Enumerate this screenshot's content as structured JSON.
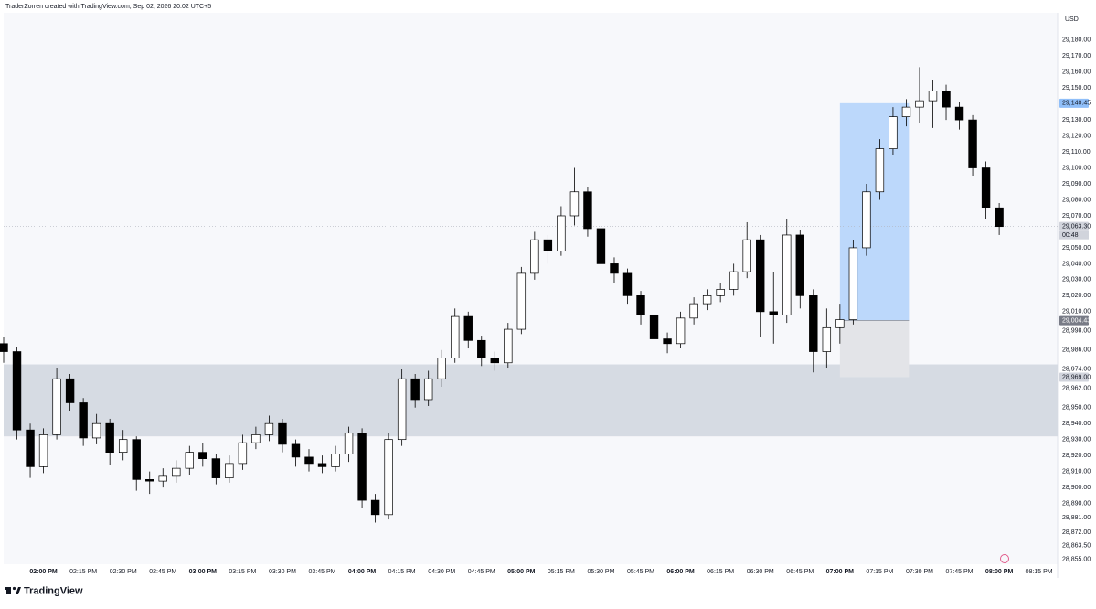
{
  "chart_data": {
    "type": "candlestick",
    "header": "TraderZorren created with TradingView.com, Sep 02, 2026 20:02 UTC+5",
    "currency": "USD",
    "brand": "TradingView",
    "up_color": "#ffffff",
    "down_color": "#000000",
    "x": [
      "01:45 PM",
      "01:50 PM",
      "01:55 PM",
      "02:00 PM",
      "02:05 PM",
      "02:10 PM",
      "02:15 PM",
      "02:20 PM",
      "02:25 PM",
      "02:30 PM",
      "02:35 PM",
      "02:40 PM",
      "02:45 PM",
      "02:50 PM",
      "02:55 PM",
      "03:00 PM",
      "03:05 PM",
      "03:10 PM",
      "03:15 PM",
      "03:20 PM",
      "03:25 PM",
      "03:30 PM",
      "03:35 PM",
      "03:40 PM",
      "03:45 PM",
      "03:50 PM",
      "03:55 PM",
      "04:00 PM",
      "04:05 PM",
      "04:10 PM",
      "04:15 PM",
      "04:20 PM",
      "04:25 PM",
      "04:30 PM",
      "04:35 PM",
      "04:40 PM",
      "04:45 PM",
      "04:50 PM",
      "04:55 PM",
      "05:00 PM",
      "05:05 PM",
      "05:10 PM",
      "05:15 PM",
      "05:20 PM",
      "05:25 PM",
      "05:30 PM",
      "05:35 PM",
      "05:40 PM",
      "05:45 PM",
      "05:50 PM",
      "05:55 PM",
      "06:00 PM",
      "06:05 PM",
      "06:10 PM",
      "06:15 PM",
      "06:20 PM",
      "06:25 PM",
      "06:30 PM",
      "06:35 PM",
      "06:40 PM",
      "06:45 PM",
      "06:50 PM",
      "06:55 PM",
      "07:00 PM",
      "07:05 PM",
      "07:10 PM",
      "07:15 PM",
      "07:20 PM",
      "07:25 PM",
      "07:30 PM",
      "07:35 PM",
      "07:40 PM",
      "07:45 PM",
      "07:50 PM",
      "07:55 PM",
      "08:00 PM"
    ],
    "open": [
      28990,
      28985,
      28936,
      28913,
      28933,
      28968,
      28953,
      28931,
      28940,
      28922,
      28930,
      28905,
      28904,
      28907,
      28912,
      28922,
      28918,
      28906,
      28915,
      28928,
      28933,
      28940,
      28927,
      28919,
      28915,
      28913,
      28921,
      28934,
      28892,
      28883,
      28930,
      28968,
      28955,
      28968,
      28981,
      29007,
      28992,
      28981,
      28978,
      28999,
      29034,
      29055,
      29048,
      29070,
      29085,
      29062,
      29040,
      29034,
      29020,
      29008,
      28993,
      28990,
      29006,
      29015,
      29020,
      29024,
      29035,
      29055,
      29010,
      29008,
      29058,
      29020,
      28985,
      29000,
      29005,
      29050,
      29085,
      29112,
      29132,
      29138,
      29142,
      29148,
      29138,
      29130,
      29100,
      29075
    ],
    "high": [
      28994,
      28988,
      28940,
      28937,
      28975,
      28971,
      28956,
      28946,
      28943,
      28936,
      28932,
      28910,
      28912,
      28917,
      28926,
      28928,
      28921,
      28920,
      28933,
      28938,
      28945,
      28943,
      28930,
      28924,
      28920,
      28926,
      28938,
      28937,
      28896,
      28934,
      28974,
      28971,
      28973,
      28986,
      29012,
      29010,
      28995,
      28985,
      29003,
      29038,
      29060,
      29058,
      29076,
      29100,
      29088,
      29065,
      29044,
      29037,
      29023,
      29011,
      28997,
      29010,
      29019,
      29024,
      29028,
      29040,
      29066,
      29058,
      29035,
      29068,
      29061,
      29024,
      29012,
      29015,
      29055,
      29090,
      29118,
      29138,
      29143,
      29163,
      29155,
      29152,
      29141,
      29133,
      29104,
      29078
    ],
    "low": [
      28978,
      28930,
      28906,
      28909,
      28930,
      28948,
      28926,
      28927,
      28914,
      28917,
      28898,
      28896,
      28900,
      28903,
      28908,
      28913,
      28902,
      28903,
      28911,
      28924,
      28929,
      28922,
      28913,
      28910,
      28909,
      28910,
      28916,
      28887,
      28878,
      28880,
      28926,
      28950,
      28951,
      28963,
      28978,
      28987,
      28976,
      28973,
      28975,
      28996,
      29030,
      29040,
      29045,
      29064,
      29057,
      29035,
      29028,
      29015,
      29002,
      28988,
      28984,
      28987,
      29002,
      29011,
      29016,
      29020,
      29031,
      28994,
      28990,
      29003,
      29012,
      28972,
      28975,
      28990,
      29002,
      29045,
      29080,
      29108,
      29126,
      29128,
      29125,
      29130,
      29124,
      29095,
      29068,
      29058
    ],
    "close": [
      28985,
      28936,
      28913,
      28933,
      28968,
      28953,
      28931,
      28940,
      28922,
      28930,
      28905,
      28904,
      28907,
      28912,
      28922,
      28918,
      28906,
      28915,
      28928,
      28933,
      28940,
      28927,
      28919,
      28915,
      28913,
      28921,
      28934,
      28892,
      28883,
      28930,
      28968,
      28955,
      28968,
      28981,
      29007,
      28992,
      28981,
      28978,
      28999,
      29034,
      29055,
      29048,
      29070,
      29085,
      29062,
      29040,
      29034,
      29020,
      29008,
      28993,
      28990,
      29006,
      29015,
      29020,
      29024,
      29035,
      29055,
      29010,
      29008,
      29058,
      29020,
      28985,
      29000,
      29005,
      29050,
      29085,
      29112,
      29132,
      29138,
      29142,
      29148,
      29138,
      29130,
      29100,
      29075,
      29063.3
    ],
    "xlim": [
      "01:45 PM",
      "08:22 PM"
    ],
    "xticks": [
      "02:00 PM",
      "02:15 PM",
      "02:30 PM",
      "02:45 PM",
      "03:00 PM",
      "03:15 PM",
      "03:30 PM",
      "03:45 PM",
      "04:00 PM",
      "04:15 PM",
      "04:30 PM",
      "04:45 PM",
      "05:00 PM",
      "05:15 PM",
      "05:30 PM",
      "05:45 PM",
      "06:00 PM",
      "06:15 PM",
      "06:30 PM",
      "06:45 PM",
      "07:00 PM",
      "07:15 PM",
      "07:30 PM",
      "07:45 PM",
      "08:00 PM",
      "08:15 PM"
    ],
    "ylim": [
      28852,
      29197
    ],
    "yticks": [
      {
        "value": 29180,
        "label": "29,180.00"
      },
      {
        "value": 29170,
        "label": "29,170.00"
      },
      {
        "value": 29160,
        "label": "29,160.00"
      },
      {
        "value": 29150,
        "label": "29,150.00"
      },
      {
        "value": 29130,
        "label": "29,130.00"
      },
      {
        "value": 29120,
        "label": "29,120.00"
      },
      {
        "value": 29110,
        "label": "29,110.00"
      },
      {
        "value": 29100,
        "label": "29,100.00"
      },
      {
        "value": 29090,
        "label": "29,090.00"
      },
      {
        "value": 29080,
        "label": "29,080.00"
      },
      {
        "value": 29070,
        "label": "29,070.00"
      },
      {
        "value": 29050,
        "label": "29,050.00"
      },
      {
        "value": 29040,
        "label": "29,040.00"
      },
      {
        "value": 29030,
        "label": "29,030.00"
      },
      {
        "value": 29020,
        "label": "29,020.00"
      },
      {
        "value": 29010,
        "label": "29,010.00"
      },
      {
        "value": 28998,
        "label": "28,998.00"
      },
      {
        "value": 28986,
        "label": "28,986.00"
      },
      {
        "value": 28974,
        "label": "28,974.00"
      },
      {
        "value": 28962,
        "label": "28,962.00"
      },
      {
        "value": 28950,
        "label": "28,950.00"
      },
      {
        "value": 28940,
        "label": "28,940.00"
      },
      {
        "value": 28930,
        "label": "28,930.00"
      },
      {
        "value": 28920,
        "label": "28,920.00"
      },
      {
        "value": 28910,
        "label": "28,910.00"
      },
      {
        "value": 28900,
        "label": "28,900.00"
      },
      {
        "value": 28890,
        "label": "28,890.00"
      },
      {
        "value": 28881,
        "label": "28,881.00"
      },
      {
        "value": 28872,
        "label": "28,872.00"
      },
      {
        "value": 28863.5,
        "label": "28,863.50"
      },
      {
        "value": 28855,
        "label": "28,855.00"
      }
    ],
    "zone": {
      "top": 28977,
      "bottom": 28932,
      "color": "#d6dbe3"
    },
    "position": {
      "start": "07:00 PM",
      "end": "07:26 PM",
      "target": {
        "value": 29140.45,
        "label": "29,140.45",
        "color": "#bcd8fb"
      },
      "entry": {
        "value": 29004.43,
        "label": "29,004.43"
      },
      "stop": {
        "value": 28969,
        "label": "28,969.00",
        "color": "#e3e4e8"
      }
    },
    "last_price": {
      "value": 29063.3,
      "label": "29,063.30",
      "countdown": "00:48"
    }
  }
}
